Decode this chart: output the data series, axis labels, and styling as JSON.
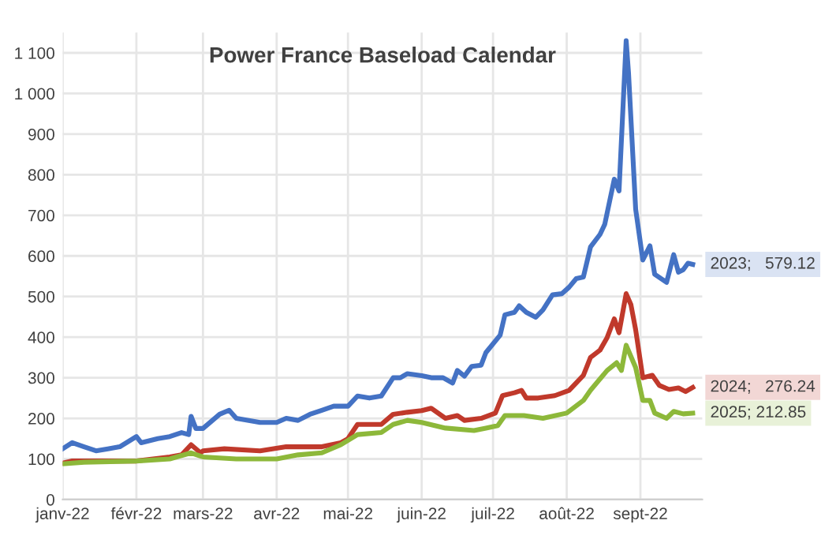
{
  "chart_data": {
    "type": "line",
    "title": "Power France Baseload Calendar",
    "xlim": [
      "2022-01-01",
      "2022-09-27"
    ],
    "ylim": [
      0,
      1150
    ],
    "xticks": [
      {
        "value": "2022-01-01",
        "label": "janv-22"
      },
      {
        "value": "2022-02-01",
        "label": "févr-22"
      },
      {
        "value": "2022-03-01",
        "label": "mars-22"
      },
      {
        "value": "2022-04-01",
        "label": "avr-22"
      },
      {
        "value": "2022-05-01",
        "label": "mai-22"
      },
      {
        "value": "2022-06-01",
        "label": "juin-22"
      },
      {
        "value": "2022-07-01",
        "label": "juil-22"
      },
      {
        "value": "2022-08-01",
        "label": "août-22"
      },
      {
        "value": "2022-09-01",
        "label": "sept-22"
      }
    ],
    "yticks": [
      0,
      100,
      200,
      300,
      400,
      500,
      600,
      700,
      800,
      900,
      {
        "value": 1000,
        "label": "1 000"
      },
      {
        "value": 1100,
        "label": "1 100"
      }
    ],
    "grid": true,
    "legend": false,
    "line_style": "solid",
    "marker": "none",
    "series": [
      {
        "color": "#4472c4",
        "x": [
          "2022-01-01",
          "2022-01-05",
          "2022-01-10",
          "2022-01-15",
          "2022-01-20",
          "2022-01-25",
          "2022-02-01",
          "2022-02-03",
          "2022-02-10",
          "2022-02-15",
          "2022-02-20",
          "2022-02-23",
          "2022-02-24",
          "2022-02-26",
          "2022-03-01",
          "2022-03-08",
          "2022-03-12",
          "2022-03-15",
          "2022-03-25",
          "2022-04-01",
          "2022-04-05",
          "2022-04-10",
          "2022-04-15",
          "2022-04-20",
          "2022-04-25",
          "2022-05-01",
          "2022-05-05",
          "2022-05-10",
          "2022-05-15",
          "2022-05-20",
          "2022-05-23",
          "2022-05-26",
          "2022-06-01",
          "2022-06-05",
          "2022-06-10",
          "2022-06-14",
          "2022-06-16",
          "2022-06-19",
          "2022-06-22",
          "2022-06-26",
          "2022-06-28",
          "2022-07-04",
          "2022-07-06",
          "2022-07-10",
          "2022-07-12",
          "2022-07-15",
          "2022-07-19",
          "2022-07-22",
          "2022-07-26",
          "2022-07-30",
          "2022-08-02",
          "2022-08-05",
          "2022-08-08",
          "2022-08-11",
          "2022-08-15",
          "2022-08-17",
          "2022-08-21",
          "2022-08-23",
          "2022-08-26",
          "2022-08-27",
          "2022-08-30",
          "2022-09-02",
          "2022-09-05",
          "2022-09-07",
          "2022-09-12",
          "2022-09-15",
          "2022-09-17",
          "2022-09-19",
          "2022-09-21",
          "2022-09-23"
        ],
        "values": [
          125,
          140,
          130,
          120,
          125,
          130,
          155,
          140,
          150,
          155,
          165,
          160,
          205,
          175,
          175,
          210,
          220,
          200,
          190,
          190,
          200,
          195,
          210,
          220,
          230,
          230,
          255,
          250,
          255,
          300,
          300,
          310,
          305,
          300,
          300,
          287,
          318,
          304,
          328,
          331,
          362,
          405,
          455,
          461,
          477,
          461,
          449,
          467,
          504,
          507,
          523,
          544,
          548,
          622,
          653,
          678,
          789,
          760,
          1130,
          1050,
          715,
          590,
          625,
          555,
          535,
          603,
          560,
          566,
          582,
          579.12
        ]
      },
      {
        "color": "#c0392b",
        "x": [
          "2022-01-01",
          "2022-01-05",
          "2022-02-01",
          "2022-02-15",
          "2022-02-20",
          "2022-02-24",
          "2022-02-28",
          "2022-03-01",
          "2022-03-10",
          "2022-03-25",
          "2022-04-05",
          "2022-04-20",
          "2022-04-28",
          "2022-05-01",
          "2022-05-05",
          "2022-05-15",
          "2022-05-20",
          "2022-05-26",
          "2022-06-01",
          "2022-06-05",
          "2022-06-11",
          "2022-06-16",
          "2022-06-19",
          "2022-06-26",
          "2022-07-02",
          "2022-07-05",
          "2022-07-10",
          "2022-07-13",
          "2022-07-15",
          "2022-07-20",
          "2022-07-27",
          "2022-08-02",
          "2022-08-08",
          "2022-08-11",
          "2022-08-15",
          "2022-08-18",
          "2022-08-21",
          "2022-08-23",
          "2022-08-26",
          "2022-08-28",
          "2022-08-30",
          "2022-09-02",
          "2022-09-06",
          "2022-09-09",
          "2022-09-13",
          "2022-09-17",
          "2022-09-20",
          "2022-09-23"
        ],
        "values": [
          90,
          95,
          95,
          105,
          110,
          135,
          115,
          120,
          125,
          120,
          130,
          130,
          140,
          150,
          185,
          185,
          210,
          215,
          219,
          225,
          200,
          207,
          195,
          200,
          213,
          256,
          263,
          269,
          250,
          250,
          256,
          269,
          306,
          350,
          368,
          399,
          445,
          411,
          507,
          480,
          418,
          300,
          306,
          281,
          271,
          275,
          266,
          276.24
        ]
      },
      {
        "color": "#8db83a",
        "x": [
          "2022-01-01",
          "2022-01-10",
          "2022-02-01",
          "2022-02-15",
          "2022-02-24",
          "2022-03-01",
          "2022-03-15",
          "2022-04-01",
          "2022-04-10",
          "2022-04-20",
          "2022-04-28",
          "2022-05-05",
          "2022-05-15",
          "2022-05-20",
          "2022-05-26",
          "2022-06-01",
          "2022-06-11",
          "2022-06-23",
          "2022-06-28",
          "2022-07-03",
          "2022-07-06",
          "2022-07-14",
          "2022-07-22",
          "2022-08-01",
          "2022-08-08",
          "2022-08-11",
          "2022-08-18",
          "2022-08-22",
          "2022-08-24",
          "2022-08-26",
          "2022-08-30",
          "2022-09-02",
          "2022-09-05",
          "2022-09-07",
          "2022-09-12",
          "2022-09-15",
          "2022-09-19",
          "2022-09-23"
        ],
        "values": [
          88,
          92,
          95,
          100,
          115,
          105,
          100,
          100,
          110,
          115,
          135,
          160,
          165,
          185,
          195,
          190,
          176,
          170,
          176,
          182,
          207,
          207,
          200,
          213,
          244,
          269,
          318,
          337,
          318,
          380,
          325,
          244,
          244,
          213,
          200,
          217,
          211,
          212.85
        ]
      }
    ],
    "annotations": [
      {
        "text": "2023;   579.12",
        "x": "2022-09-23",
        "y": 579.12
      },
      {
        "text": "2024;   276.24",
        "x": "2022-09-23",
        "y": 276.24
      },
      {
        "text": "2025; 212.85",
        "x": "2022-09-23",
        "y": 212.85
      }
    ]
  }
}
